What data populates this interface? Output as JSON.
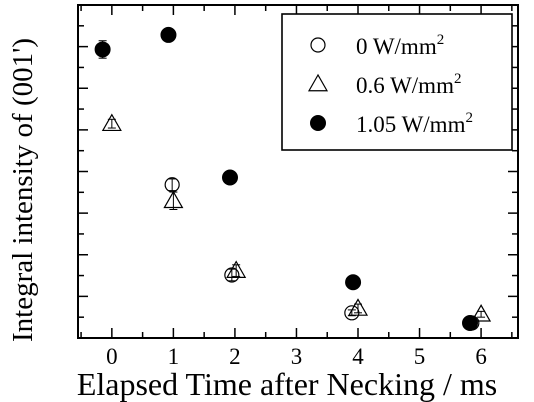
{
  "chart_data": {
    "type": "scatter",
    "title": "",
    "xlabel": "Elapsed Time after Necking / ms",
    "ylabel": "Integral intensity of (001')",
    "xlim": [
      -0.55,
      6.6
    ],
    "ylim": [
      0,
      1
    ],
    "xticks": [
      "0",
      "1",
      "2",
      "3",
      "4",
      "5",
      "6"
    ],
    "xtick_values": [
      0,
      1,
      2,
      3,
      4,
      5,
      6
    ],
    "y_tick_labels_shown": false,
    "legend_position": "top-right",
    "series": [
      {
        "name": "0 W/mm",
        "name_sup": "2",
        "marker": "open-circle",
        "points": [
          {
            "x": 0.98,
            "y": 0.475,
            "err": 0.02
          },
          {
            "x": 1.95,
            "y": 0.165,
            "err": 0.02
          },
          {
            "x": 3.9,
            "y": 0.035,
            "err": 0.01
          },
          {
            "x": 5.85,
            "y": 0.0,
            "err": 0.01
          }
        ]
      },
      {
        "name": "0.6 W/mm",
        "name_sup": "2",
        "marker": "open-triangle",
        "points": [
          {
            "x": 0.0,
            "y": 0.685,
            "err": 0.015
          },
          {
            "x": 1.0,
            "y": 0.42,
            "err": 0.03
          },
          {
            "x": 2.02,
            "y": 0.18,
            "err": 0.02
          },
          {
            "x": 4.0,
            "y": 0.05,
            "err": 0.015
          },
          {
            "x": 6.0,
            "y": 0.03,
            "err": 0.01
          }
        ]
      },
      {
        "name": "1.05 W/mm",
        "name_sup": "2",
        "marker": "filled-circle",
        "points": [
          {
            "x": -0.15,
            "y": 0.94,
            "err": 0.03
          },
          {
            "x": 0.92,
            "y": 0.99,
            "err": 0.0
          },
          {
            "x": 1.92,
            "y": 0.5,
            "err": 0.02
          },
          {
            "x": 3.92,
            "y": 0.14,
            "err": 0.0
          },
          {
            "x": 5.82,
            "y": 0.0,
            "err": 0.01
          }
        ]
      }
    ]
  }
}
